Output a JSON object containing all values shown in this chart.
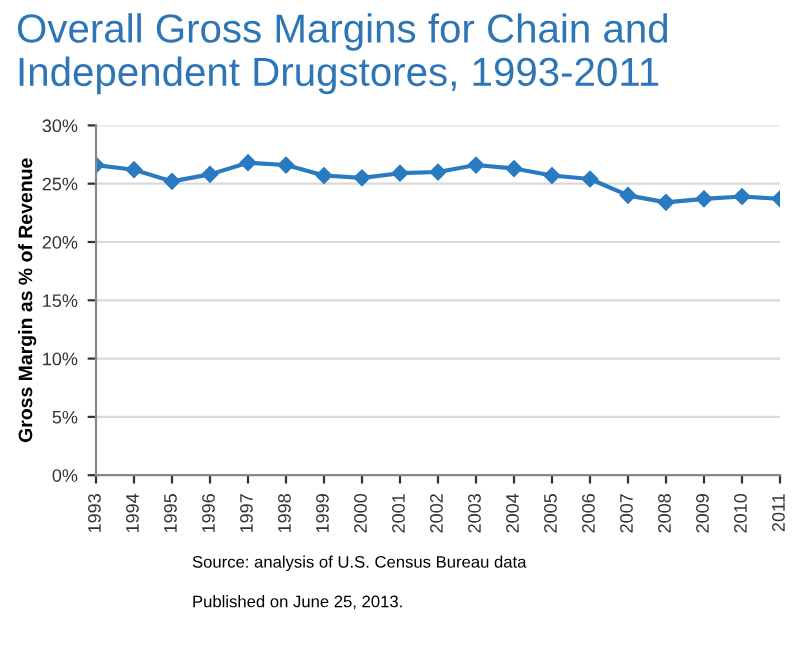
{
  "chart_data": {
    "type": "line",
    "title": "Overall Gross Margins for Chain and Independent Drugstores, 1993-2011",
    "ylabel": "Gross Margin as % of Revenue",
    "categories": [
      "1993",
      "1994",
      "1995",
      "1996",
      "1997",
      "1998",
      "1999",
      "2000",
      "2001",
      "2002",
      "2003",
      "2004",
      "2005",
      "2006",
      "2007",
      "2008",
      "2009",
      "2010",
      "2011"
    ],
    "series": [
      {
        "color": "#2a7ac2",
        "values": [
          26.6,
          26.2,
          25.2,
          25.8,
          26.8,
          26.6,
          25.7,
          25.5,
          25.9,
          26.0,
          26.6,
          26.3,
          25.7,
          25.4,
          24.0,
          23.4,
          23.7,
          23.9,
          23.7
        ]
      }
    ],
    "ylim": [
      0,
      30
    ],
    "yticks": [
      {
        "value": 0,
        "label": "0%"
      },
      {
        "value": 5,
        "label": "5%"
      },
      {
        "value": 10,
        "label": "10%"
      },
      {
        "value": 15,
        "label": "15%"
      },
      {
        "value": 20,
        "label": "20%"
      },
      {
        "value": 25,
        "label": "25%"
      },
      {
        "value": 30,
        "label": "30%"
      }
    ],
    "grid": "y",
    "marker": "diamond",
    "line_style": "solid",
    "annotations": [
      "Source: analysis of U.S. Census Bureau data",
      "Published on June 25, 2013."
    ]
  }
}
